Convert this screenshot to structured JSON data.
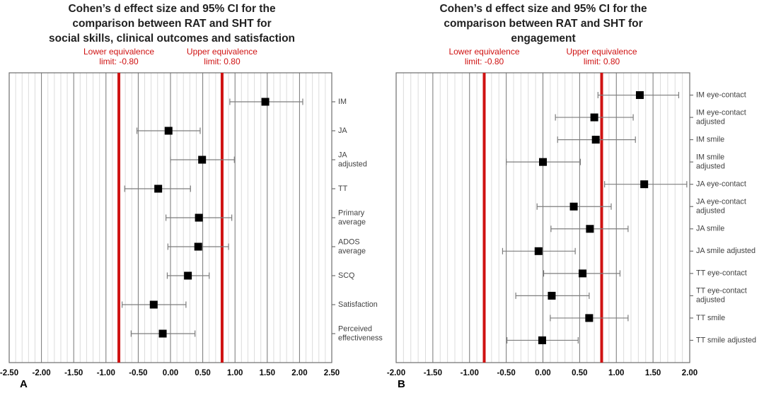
{
  "colors": {
    "red": "#cf1212",
    "square": "#000000",
    "grid_major": "#767676",
    "grid_minor": "#dcdcdc",
    "frame": "#6e6e6e",
    "whisker": "#7d7d7d",
    "title_text": "#212121",
    "row_label_text": "#414141",
    "tick_label_text": "#0a0a0a"
  },
  "chart_data": [
    {
      "type": "forest",
      "panel_letter": "A",
      "title_lines": [
        "Cohen’s d effect size and 95% CI for the",
        "comparison between RAT and SHT for",
        "social skills, clinical outcomes and satisfaction"
      ],
      "annotations": {
        "lower": {
          "lines": [
            "Lower equivalence",
            "limit: -0.80"
          ],
          "x": -0.8
        },
        "upper": {
          "lines": [
            "Upper equivalence",
            "limit: 0.80"
          ],
          "x": 0.8
        }
      },
      "equivalence_limits": [
        -0.8,
        0.8
      ],
      "xlim": [
        -2.5,
        2.5
      ],
      "major_step": 0.5,
      "minor_step": 0.1,
      "xtick_labels": [
        "-2.50",
        "-2.00",
        "-1.50",
        "-1.00",
        "-0.50",
        "0.00",
        "0.50",
        "1.00",
        "1.50",
        "2.00",
        "2.50"
      ],
      "rows": [
        {
          "label_lines": [
            "IM"
          ],
          "d": 1.47,
          "ci_low": 0.92,
          "ci_high": 2.05
        },
        {
          "label_lines": [
            "JA"
          ],
          "d": -0.03,
          "ci_low": -0.52,
          "ci_high": 0.46
        },
        {
          "label_lines": [
            "JA",
            "adjusted"
          ],
          "d": 0.49,
          "ci_low": 0.0,
          "ci_high": 0.99
        },
        {
          "label_lines": [
            "TT"
          ],
          "d": -0.19,
          "ci_low": -0.71,
          "ci_high": 0.31
        },
        {
          "label_lines": [
            "Primary",
            "average"
          ],
          "d": 0.44,
          "ci_low": -0.07,
          "ci_high": 0.95
        },
        {
          "label_lines": [
            "ADOS",
            "average"
          ],
          "d": 0.43,
          "ci_low": -0.04,
          "ci_high": 0.9
        },
        {
          "label_lines": [
            "SCQ"
          ],
          "d": 0.27,
          "ci_low": -0.05,
          "ci_high": 0.6
        },
        {
          "label_lines": [
            "Satisfaction"
          ],
          "d": -0.26,
          "ci_low": -0.75,
          "ci_high": 0.24
        },
        {
          "label_lines": [
            "Perceived",
            "effectiveness"
          ],
          "d": -0.12,
          "ci_low": -0.61,
          "ci_high": 0.38
        }
      ]
    },
    {
      "type": "forest",
      "panel_letter": "B",
      "title_lines": [
        "Cohen’s d effect size and 95% CI for the",
        "comparison between RAT and SHT for",
        "engagement"
      ],
      "annotations": {
        "lower": {
          "lines": [
            "Lower equivalence",
            "limit: -0.80"
          ],
          "x": -0.8
        },
        "upper": {
          "lines": [
            "Upper equivalence",
            "limit: 0.80"
          ],
          "x": 0.8
        }
      },
      "equivalence_limits": [
        -0.8,
        0.8
      ],
      "xlim": [
        -2.0,
        2.0
      ],
      "major_step": 0.5,
      "minor_step": 0.1,
      "xtick_labels": [
        "-2.00",
        "-1.50",
        "-1.00",
        "-0.50",
        "0.00",
        "0.50",
        "1.00",
        "1.50",
        "2.00"
      ],
      "rows": [
        {
          "label_lines": [
            "IM eye-contact"
          ],
          "d": 1.32,
          "ci_low": 0.75,
          "ci_high": 1.85
        },
        {
          "label_lines": [
            "IM eye-contact",
            "adjusted"
          ],
          "d": 0.7,
          "ci_low": 0.17,
          "ci_high": 1.23
        },
        {
          "label_lines": [
            "IM smile"
          ],
          "d": 0.72,
          "ci_low": 0.2,
          "ci_high": 1.26
        },
        {
          "label_lines": [
            "IM smile",
            "adjusted"
          ],
          "d": 0.0,
          "ci_low": -0.5,
          "ci_high": 0.51
        },
        {
          "label_lines": [
            "JA eye-contact"
          ],
          "d": 1.38,
          "ci_low": 0.84,
          "ci_high": 1.96
        },
        {
          "label_lines": [
            "JA eye-contact",
            "adjusted"
          ],
          "d": 0.42,
          "ci_low": -0.08,
          "ci_high": 0.93
        },
        {
          "label_lines": [
            "JA smile"
          ],
          "d": 0.64,
          "ci_low": 0.11,
          "ci_high": 1.16
        },
        {
          "label_lines": [
            "JA smile adjusted"
          ],
          "d": -0.06,
          "ci_low": -0.55,
          "ci_high": 0.44
        },
        {
          "label_lines": [
            "TT eye-contact"
          ],
          "d": 0.54,
          "ci_low": 0.01,
          "ci_high": 1.05
        },
        {
          "label_lines": [
            "TT eye-contact",
            "adjusted"
          ],
          "d": 0.12,
          "ci_low": -0.37,
          "ci_high": 0.63
        },
        {
          "label_lines": [
            "TT smile"
          ],
          "d": 0.63,
          "ci_low": 0.1,
          "ci_high": 1.16
        },
        {
          "label_lines": [
            "TT smile adjusted"
          ],
          "d": -0.01,
          "ci_low": -0.49,
          "ci_high": 0.48
        }
      ]
    }
  ]
}
